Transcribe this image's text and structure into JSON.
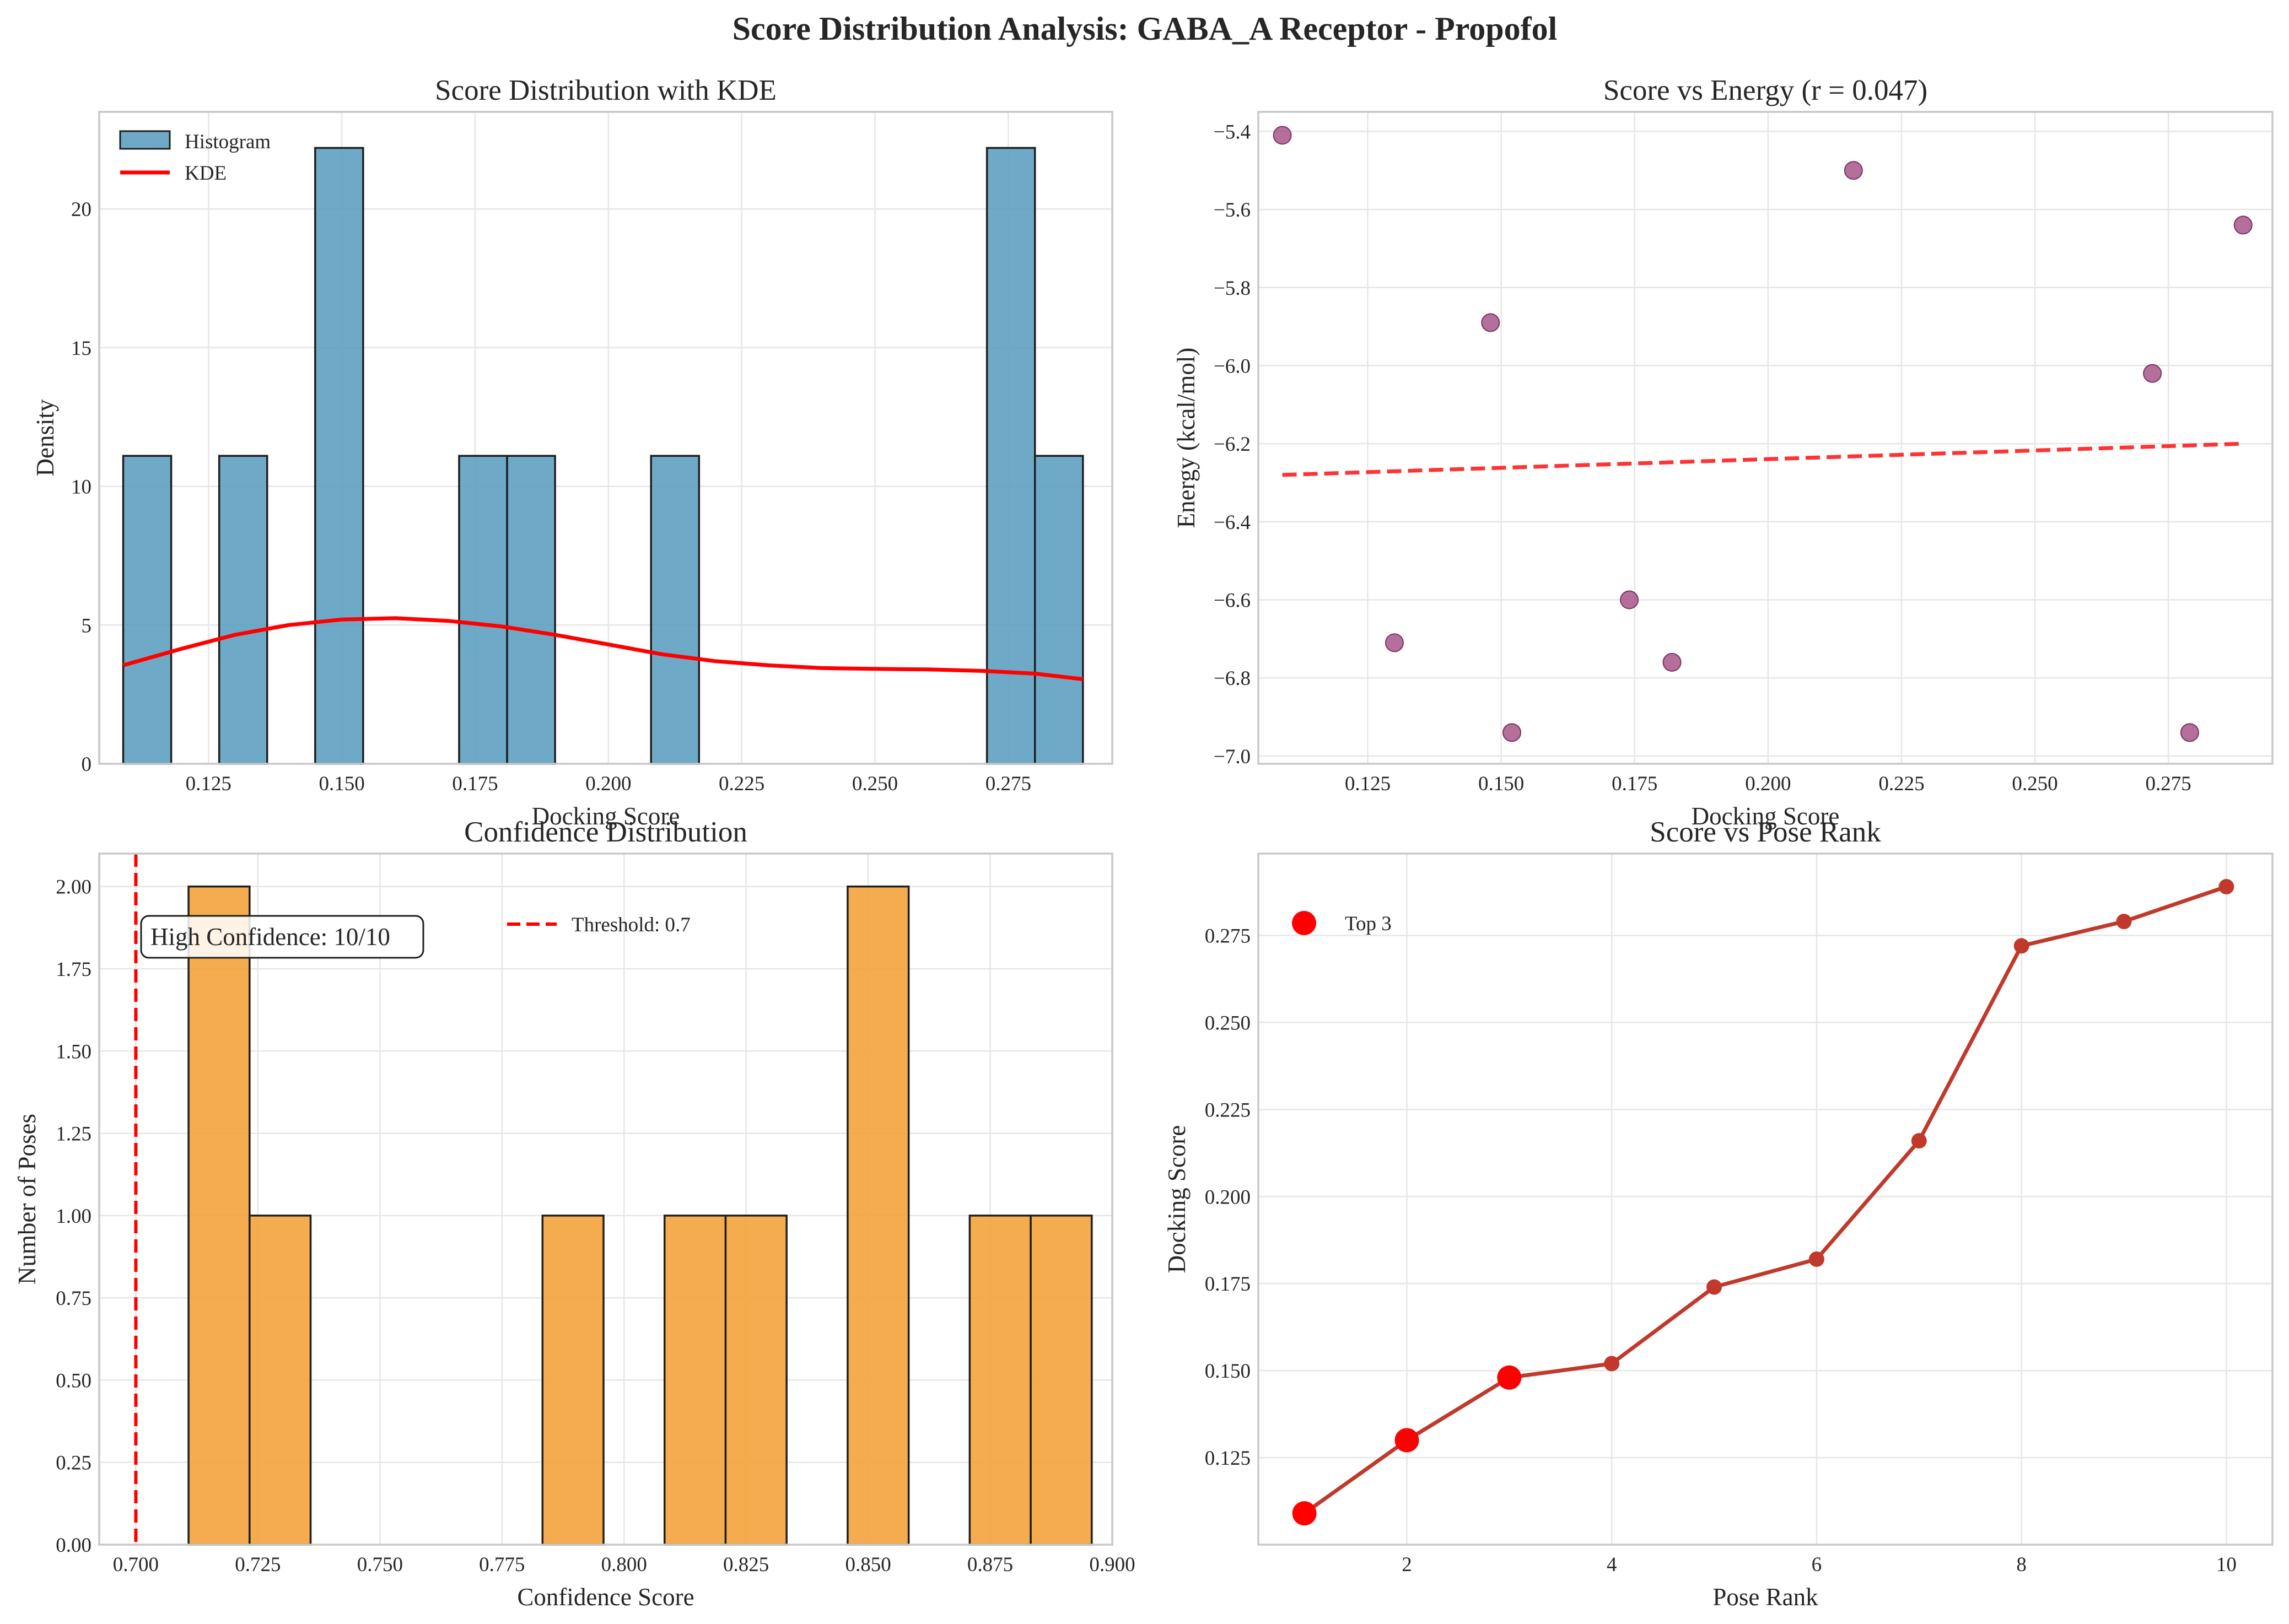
{
  "title": "Score Distribution Analysis: GABA_A Receptor - Propofol",
  "colors": {
    "hist_blue": "#5a9ebf",
    "hist_orange": "#f3a33b",
    "kde_red": "#ff0000",
    "scatter_purple": "#a34f85",
    "line_red": "#c0392b",
    "top3_red": "#ff0000"
  },
  "chart_data": [
    {
      "type": "bar",
      "title": "Score Distribution with KDE",
      "xlabel": "Docking Score",
      "ylabel": "Density",
      "xlim": [
        0.1045,
        0.2945
      ],
      "ylim": [
        0,
        23.5
      ],
      "xticks": [
        "0.125",
        "0.150",
        "0.175",
        "0.200",
        "0.225",
        "0.250",
        "0.275"
      ],
      "yticks": [
        "0",
        "5",
        "10",
        "15",
        "20"
      ],
      "bins": [
        {
          "x0": 0.109,
          "x1": 0.118,
          "density": 11.1
        },
        {
          "x0": 0.127,
          "x1": 0.136,
          "density": 11.1
        },
        {
          "x0": 0.145,
          "x1": 0.154,
          "density": 22.2
        },
        {
          "x0": 0.172,
          "x1": 0.181,
          "density": 11.1
        },
        {
          "x0": 0.181,
          "x1": 0.19,
          "density": 11.1
        },
        {
          "x0": 0.208,
          "x1": 0.217,
          "density": 11.1
        },
        {
          "x0": 0.271,
          "x1": 0.28,
          "density": 22.2
        },
        {
          "x0": 0.28,
          "x1": 0.289,
          "density": 11.1
        }
      ],
      "kde": {
        "x": [
          0.109,
          0.12,
          0.13,
          0.14,
          0.15,
          0.16,
          0.17,
          0.18,
          0.19,
          0.2,
          0.21,
          0.22,
          0.23,
          0.24,
          0.25,
          0.26,
          0.27,
          0.28,
          0.289
        ],
        "y": [
          3.55,
          4.15,
          4.65,
          5.0,
          5.2,
          5.25,
          5.15,
          4.95,
          4.65,
          4.3,
          3.95,
          3.7,
          3.55,
          3.45,
          3.42,
          3.4,
          3.35,
          3.25,
          3.05
        ]
      },
      "legend": [
        "Histogram",
        "KDE"
      ],
      "legend_position": "upper-left",
      "grid": true
    },
    {
      "type": "scatter",
      "title": "Score vs Energy (r = 0.047)",
      "xlabel": "Docking Score",
      "ylabel": "Energy (kcal/mol)",
      "xlim": [
        0.1045,
        0.2945
      ],
      "ylim": [
        -7.02,
        -5.35
      ],
      "xticks": [
        "0.125",
        "0.150",
        "0.175",
        "0.200",
        "0.225",
        "0.250",
        "0.275"
      ],
      "yticks": [
        "−7.0",
        "−6.8",
        "−6.6",
        "−6.4",
        "−6.2",
        "−6.0",
        "−5.8",
        "−5.6",
        "−5.4"
      ],
      "points": [
        {
          "x": 0.109,
          "y": -5.41
        },
        {
          "x": 0.13,
          "y": -6.71
        },
        {
          "x": 0.148,
          "y": -5.89
        },
        {
          "x": 0.152,
          "y": -6.94
        },
        {
          "x": 0.174,
          "y": -6.6
        },
        {
          "x": 0.182,
          "y": -6.76
        },
        {
          "x": 0.216,
          "y": -5.5
        },
        {
          "x": 0.272,
          "y": -6.02
        },
        {
          "x": 0.279,
          "y": -6.94
        },
        {
          "x": 0.289,
          "y": -5.64
        }
      ],
      "trend": {
        "x": [
          0.109,
          0.289
        ],
        "y": [
          -6.28,
          -6.2
        ]
      },
      "grid": true
    },
    {
      "type": "bar",
      "title": "Confidence Distribution",
      "xlabel": "Confidence Score",
      "ylabel": "Number of Poses",
      "xlim": [
        0.6925,
        0.9
      ],
      "ylim": [
        0,
        2.1
      ],
      "xticks": [
        "0.700",
        "0.725",
        "0.750",
        "0.775",
        "0.800",
        "0.825",
        "0.850",
        "0.875",
        "0.900"
      ],
      "yticks": [
        "0.00",
        "0.25",
        "0.50",
        "0.75",
        "1.00",
        "1.25",
        "1.50",
        "1.75",
        "2.00"
      ],
      "bins": [
        {
          "x0": 0.7108,
          "x1": 0.7233,
          "count": 2
        },
        {
          "x0": 0.7233,
          "x1": 0.7358,
          "count": 1
        },
        {
          "x0": 0.7833,
          "x1": 0.7958,
          "count": 1
        },
        {
          "x0": 0.8083,
          "x1": 0.8208,
          "count": 1
        },
        {
          "x0": 0.8208,
          "x1": 0.8333,
          "count": 1
        },
        {
          "x0": 0.8458,
          "x1": 0.8583,
          "count": 2
        },
        {
          "x0": 0.8708,
          "x1": 0.8833,
          "count": 1
        },
        {
          "x0": 0.8833,
          "x1": 0.8958,
          "count": 1
        }
      ],
      "threshold": 0.7,
      "threshold_label": "Threshold: 0.7",
      "annotation": "High Confidence: 10/10",
      "legend_position": "upper-center",
      "grid": true
    },
    {
      "type": "line",
      "title": "Score vs Pose Rank",
      "xlabel": "Pose Rank",
      "ylabel": "Docking Score",
      "xlim": [
        0.55,
        10.45
      ],
      "ylim": [
        0.1,
        0.2985
      ],
      "xticks": [
        "2",
        "4",
        "6",
        "8",
        "10"
      ],
      "yticks": [
        "0.125",
        "0.150",
        "0.175",
        "0.200",
        "0.225",
        "0.250",
        "0.275"
      ],
      "x": [
        1,
        2,
        3,
        4,
        5,
        6,
        7,
        8,
        9,
        10
      ],
      "y": [
        0.109,
        0.13,
        0.148,
        0.152,
        0.174,
        0.182,
        0.216,
        0.272,
        0.279,
        0.289
      ],
      "highlight": {
        "name": "Top 3",
        "x": [
          1,
          2,
          3
        ],
        "y": [
          0.109,
          0.13,
          0.148
        ]
      },
      "legend": [
        "Top 3"
      ],
      "legend_position": "upper-left",
      "grid": true
    }
  ]
}
